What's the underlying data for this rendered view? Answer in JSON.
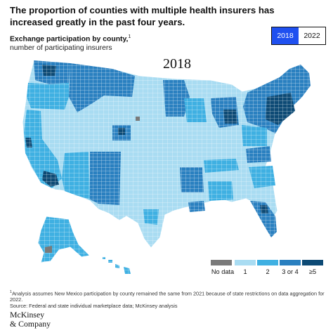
{
  "header": {
    "title": "The proportion of counties with multiple health insurers has increased greatly in the past four years.",
    "subtitle": "Exchange participation by county,",
    "subtitle_footnote_marker": "1",
    "subnote": "number of participating insurers"
  },
  "year_toggle": {
    "options": [
      "2018",
      "2022"
    ],
    "selected": "2018"
  },
  "map": {
    "year_label": "2018",
    "colors": {
      "no_data": "#7a7a7a",
      "one": "#a9dcf2",
      "two": "#3fb0e2",
      "three_four": "#2a80c0",
      "five_plus": "#0d4a75",
      "border": "#ffffff"
    }
  },
  "legend": {
    "items": [
      {
        "label": "No data",
        "color": "#7a7a7a"
      },
      {
        "label": "1",
        "color": "#a9dcf2"
      },
      {
        "label": "2",
        "color": "#3fb0e2"
      },
      {
        "label": "3 or 4",
        "color": "#2a80c0"
      },
      {
        "label": "≥5",
        "color": "#0d4a75"
      }
    ]
  },
  "footnote": {
    "marker": "1",
    "text": "Analysis assumes New Mexico participation by county remained the same from 2021 because of state restrictions on data aggregation for 2022.",
    "source": "Source: Federal and state individual marketplace data; McKinsey analysis"
  },
  "logo": {
    "line1": "McKinsey",
    "line2": "& Company"
  }
}
